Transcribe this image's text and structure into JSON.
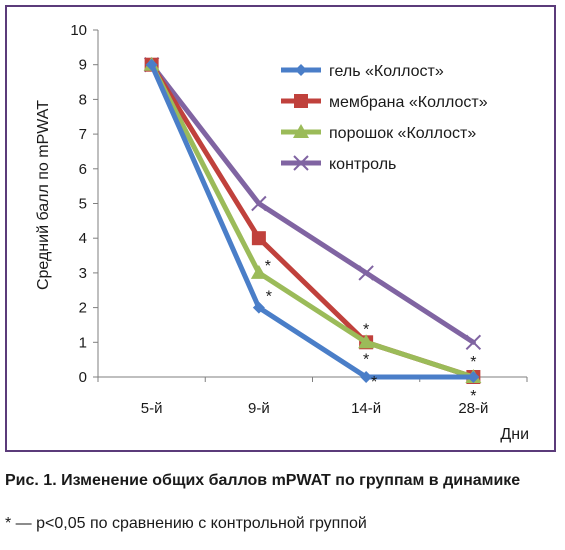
{
  "chart_data": {
    "type": "line",
    "categories": [
      "5-й",
      "9-й",
      "14-й",
      "28-й"
    ],
    "ylabel": "Средний балл по mPWAT",
    "xlabel": "Дни",
    "ylim": [
      0,
      10
    ],
    "yticks": [
      "0",
      "1",
      "2",
      "3",
      "4",
      "5",
      "6",
      "7",
      "8",
      "9",
      "10"
    ],
    "grid": false,
    "legend_position": "top-right",
    "series": [
      {
        "name": "гель «Коллост»",
        "values": [
          9,
          2,
          0,
          0
        ],
        "color": "#4a7ec8",
        "marker": "diamond",
        "significant": [
          false,
          true,
          true,
          false
        ]
      },
      {
        "name": "мембрана «Коллост»",
        "values": [
          9,
          4,
          1,
          0
        ],
        "color": "#c0413c",
        "marker": "square",
        "significant": [
          false,
          false,
          true,
          true
        ]
      },
      {
        "name": "порошок «Коллост»",
        "values": [
          9,
          3,
          1,
          0
        ],
        "color": "#9bbb59",
        "marker": "triangle",
        "significant": [
          false,
          true,
          true,
          true
        ]
      },
      {
        "name": "контроль",
        "values": [
          9,
          5,
          3,
          1
        ],
        "color": "#8064a2",
        "marker": "x",
        "significant": [
          false,
          false,
          false,
          false
        ]
      }
    ],
    "significance_mark": "*"
  },
  "caption": {
    "title": "Рис. 1. Изменение общих баллов mPWAT по группам в динамике",
    "note": "* — p<0,05 по сравнению с контрольной группой"
  }
}
